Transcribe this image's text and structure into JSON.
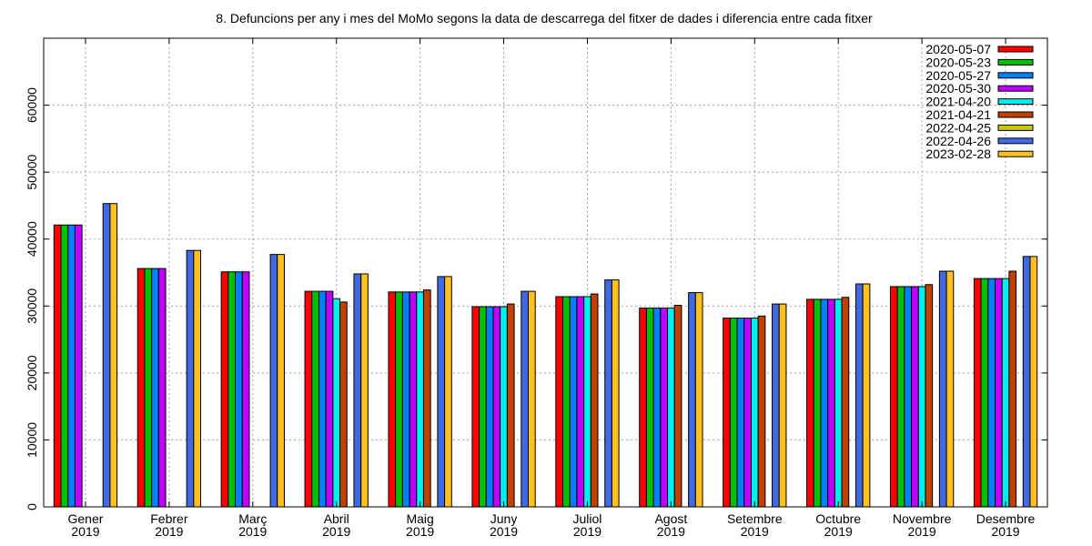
{
  "chart_data": {
    "type": "bar",
    "title": "8. Defuncions per any i mes del MoMo segons la data de descarrega del fitxer de dades i diferencia entre cada fitxer",
    "xlabel": "",
    "ylabel": "",
    "ylim": [
      0,
      70000
    ],
    "yticks": [
      0,
      10000,
      20000,
      30000,
      40000,
      50000,
      60000
    ],
    "grid": true,
    "legend_position": "top-right",
    "categories": [
      [
        "Gener",
        "2019"
      ],
      [
        "Febrer",
        "2019"
      ],
      [
        "Març",
        "2019"
      ],
      [
        "Abril",
        "2019"
      ],
      [
        "Maig",
        "2019"
      ],
      [
        "Juny",
        "2019"
      ],
      [
        "Juliol",
        "2019"
      ],
      [
        "Agost",
        "2019"
      ],
      [
        "Setembre",
        "2019"
      ],
      [
        "Octubre",
        "2019"
      ],
      [
        "Novembre",
        "2019"
      ],
      [
        "Desembre",
        "2019"
      ]
    ],
    "series": [
      {
        "name": "2020-05-07",
        "color": "#ff0000",
        "values": [
          42100,
          35600,
          35100,
          32200,
          32100,
          29900,
          31400,
          29700,
          28200,
          31000,
          32900,
          34100
        ]
      },
      {
        "name": "2020-05-23",
        "color": "#00c000",
        "values": [
          42100,
          35600,
          35100,
          32200,
          32100,
          29900,
          31400,
          29700,
          28200,
          31000,
          32900,
          34100
        ]
      },
      {
        "name": "2020-05-27",
        "color": "#0080ff",
        "values": [
          42100,
          35600,
          35100,
          32200,
          32100,
          29900,
          31400,
          29700,
          28200,
          31000,
          32900,
          34100
        ]
      },
      {
        "name": "2020-05-30",
        "color": "#c000ff",
        "values": [
          42100,
          35600,
          35100,
          32200,
          32100,
          29900,
          31400,
          29700,
          28200,
          31000,
          32900,
          34100
        ]
      },
      {
        "name": "2021-04-20",
        "color": "#00eeee",
        "values": [
          null,
          null,
          null,
          31100,
          32100,
          29900,
          31400,
          29700,
          28200,
          31000,
          32900,
          34100
        ]
      },
      {
        "name": "2021-04-21",
        "color": "#c04000",
        "values": [
          null,
          null,
          null,
          30600,
          32400,
          30300,
          31800,
          30100,
          28500,
          31300,
          33200,
          35200
        ]
      },
      {
        "name": "2022-04-25",
        "color": "#c8c800",
        "values": [
          null,
          null,
          null,
          null,
          null,
          null,
          null,
          null,
          null,
          null,
          null,
          null
        ]
      },
      {
        "name": "2022-04-26",
        "color": "#4169e1",
        "values": [
          45300,
          38300,
          37700,
          34800,
          34400,
          32200,
          33900,
          32000,
          30300,
          33300,
          35200,
          37400
        ]
      },
      {
        "name": "2023-02-28",
        "color": "#ffc020",
        "values": [
          45300,
          38300,
          37700,
          34800,
          34400,
          32200,
          33900,
          32000,
          30300,
          33300,
          35200,
          37400
        ]
      }
    ]
  }
}
